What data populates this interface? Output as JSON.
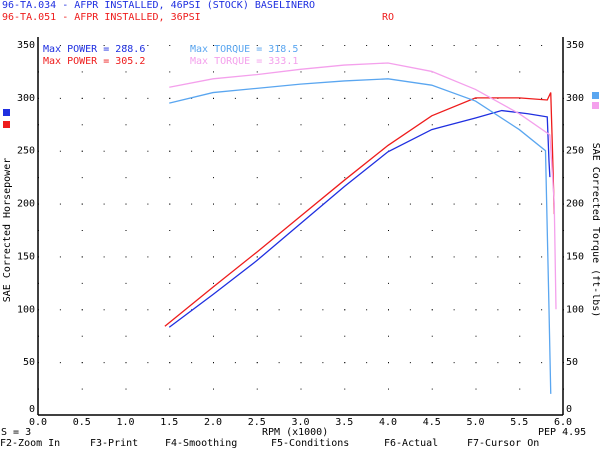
{
  "header": {
    "run1": "96-TA.034 - AFPR INSTALLED, 46PSI (STOCK) BASELINERO",
    "run2": "96-TA.051 - AFPR INSTALLED, 36PSI",
    "run2_right": "RO"
  },
  "stats": {
    "run1_power": "Max POWER = 288.6",
    "run1_torque": "Max TORQUE = 318.5",
    "run2_power": "Max POWER = 305.2",
    "run2_torque": "Max TORQUE = 333.1"
  },
  "footer": {
    "smoothing": "S = 3",
    "pep": "PEP 4.95",
    "keys": [
      "F2-Zoom In",
      "F3-Print",
      "F4-Smoothing",
      "F5-Conditions",
      "F6-Actual",
      "F7-Cursor On"
    ]
  },
  "chart_data": {
    "type": "line",
    "xlabel": "RPM (x1000)",
    "ylabel": "SAE Corrected Horsepower",
    "y2label": "SAE Corrected Torque (ft-lbs)",
    "xlim": [
      0,
      6
    ],
    "ylim": [
      0,
      350
    ],
    "y2lim": [
      0,
      350
    ],
    "grid": "dotted",
    "xticks": [
      "0.0",
      "0.5",
      "1.0",
      "1.5",
      "2.0",
      "2.5",
      "3.0",
      "3.5",
      "4.0",
      "4.5",
      "5.0",
      "5.5",
      "6.0"
    ],
    "yticks": [
      "0",
      "50",
      "100",
      "150",
      "200",
      "250",
      "300",
      "350"
    ],
    "series": [
      {
        "name": "96-TA.034 power",
        "color": "#1f2fe0",
        "x": [
          1.5,
          2.0,
          2.5,
          3.0,
          3.5,
          4.0,
          4.5,
          5.0,
          5.3,
          5.6,
          5.82,
          5.84,
          5.85
        ],
        "y": [
          83,
          114,
          146,
          181,
          216,
          249,
          270,
          281,
          288,
          285,
          282,
          240,
          225
        ]
      },
      {
        "name": "96-TA.051 power",
        "color": "#ee1c1c",
        "x": [
          1.45,
          2.0,
          2.5,
          3.0,
          3.5,
          4.0,
          4.5,
          5.0,
          5.5,
          5.82,
          5.86,
          5.88,
          5.9
        ],
        "y": [
          84,
          121,
          154,
          188,
          222,
          255,
          283,
          300,
          300,
          298,
          305,
          250,
          190
        ]
      },
      {
        "name": "96-TA.034 torque",
        "color": "#5aa6f0",
        "x": [
          1.5,
          2.0,
          2.5,
          3.0,
          3.5,
          4.0,
          4.5,
          5.0,
          5.5,
          5.8,
          5.84,
          5.86
        ],
        "y": [
          295,
          305,
          309,
          313,
          316,
          318,
          312,
          297,
          270,
          250,
          100,
          20
        ]
      },
      {
        "name": "96-TA.051 torque",
        "color": "#f4a0ec",
        "x": [
          1.5,
          2.0,
          2.5,
          3.0,
          3.5,
          4.0,
          4.5,
          5.0,
          5.5,
          5.85,
          5.9,
          5.92
        ],
        "y": [
          310,
          318,
          322,
          327,
          331,
          333,
          325,
          308,
          285,
          265,
          200,
          100
        ]
      }
    ]
  }
}
